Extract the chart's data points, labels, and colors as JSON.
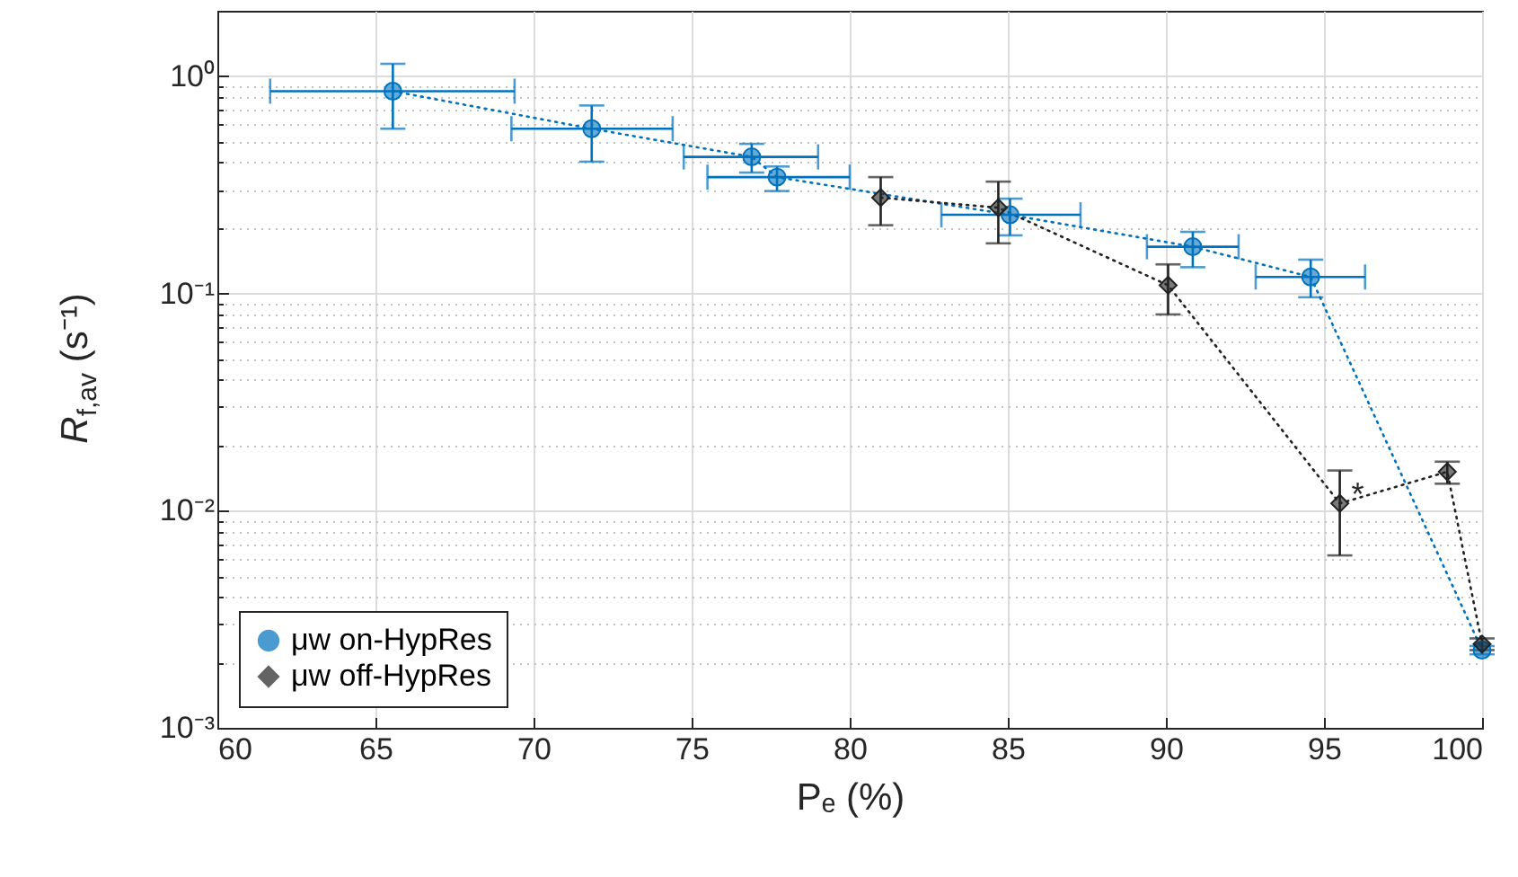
{
  "chart_data": {
    "type": "line",
    "xlabel": "Pₑ (%)",
    "ylabel": "R$_{f,av}$ (s⁻¹)",
    "xlim": [
      60,
      100
    ],
    "xticks": [
      60,
      65,
      70,
      75,
      80,
      85,
      90,
      95,
      100
    ],
    "ylim": [
      0.001,
      2
    ],
    "yticks": [
      {
        "value": 0.001,
        "label": "10⁻³"
      },
      {
        "value": 0.01,
        "label": "10⁻²"
      },
      {
        "value": 0.1,
        "label": "10⁻¹"
      },
      {
        "value": 1,
        "label": "10⁰"
      }
    ],
    "log": "y",
    "grid": true,
    "legend": "bottom left",
    "line_style": "dotted",
    "series": [
      {
        "name": "μw on-HypRes",
        "color": "#0072bd",
        "marker": "circle",
        "x": [
          65.55,
          71.84,
          76.9,
          77.7,
          85.07,
          90.85,
          94.58,
          100
        ],
        "values": [
          0.853,
          0.573,
          0.425,
          0.343,
          0.23,
          0.164,
          0.119,
          0.00228
        ],
        "errors": [
          [
            0.573,
            1.14
          ],
          [
            0.404,
            0.733
          ],
          [
            0.36,
            0.488
          ],
          [
            0.296,
            0.384
          ],
          [
            0.185,
            0.273
          ],
          [
            0.132,
            0.192
          ],
          [
            0.096,
            0.143
          ],
          [
            0.00218,
            0.00238
          ]
        ],
        "xerrors": [
          [
            61.67,
            69.4
          ],
          [
            69.3,
            74.4
          ],
          [
            74.75,
            79.0
          ],
          [
            75.5,
            80.0
          ],
          [
            82.9,
            87.3
          ],
          [
            89.4,
            92.3
          ],
          [
            92.84,
            96.3
          ],
          null
        ]
      },
      {
        "name": "μw off-HypRes",
        "color": "#222222",
        "marker": "diamond",
        "x": [
          80.98,
          84.7,
          90.07,
          95.5,
          98.9,
          100
        ],
        "values": [
          0.276,
          0.248,
          0.109,
          0.0108,
          0.0151,
          0.00243
        ],
        "errors": [
          [
            0.206,
            0.343
          ],
          [
            0.17,
            0.327
          ],
          [
            0.08,
            0.136
          ],
          [
            0.00622,
            0.0153
          ],
          [
            0.0133,
            0.0168
          ],
          [
            0.00228,
            0.00258
          ]
        ]
      }
    ],
    "annotations": [
      {
        "text": "*",
        "x": 95.5,
        "y": 0.0108
      }
    ]
  }
}
